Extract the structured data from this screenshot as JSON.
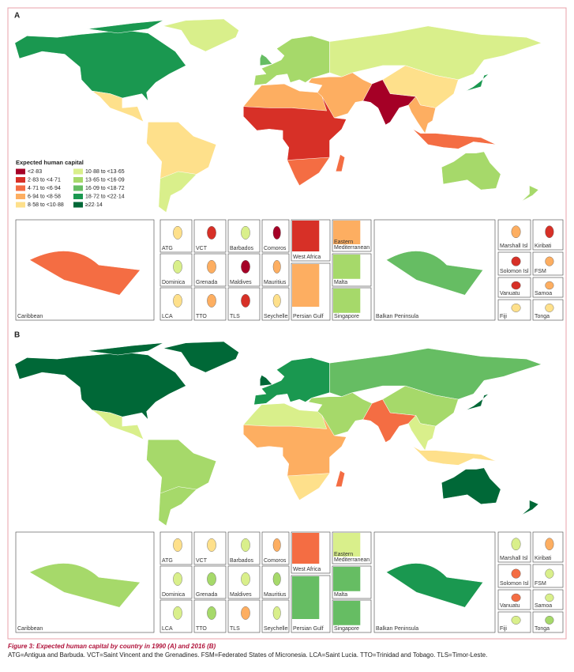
{
  "panels": [
    {
      "label": "A",
      "insets": [
        "Caribbean",
        "ATG",
        "VCT",
        "Barbados",
        "Comoros",
        "West Africa",
        "Eastern Mediterranean",
        "Balkan Peninsula",
        "Marshall Isl",
        "Kiribati",
        "Dominica",
        "Grenada",
        "Maldives",
        "Mauritius",
        "Malta",
        "Solomon Isl",
        "FSM",
        "LCA",
        "TTO",
        "TLS",
        "Seychelles",
        "Persian Gulf",
        "Singapore",
        "Vanuatu",
        "Samoa",
        "Fiji",
        "Tonga"
      ]
    },
    {
      "label": "B",
      "insets": [
        "Caribbean",
        "ATG",
        "VCT",
        "Barbados",
        "Comoros",
        "West Africa",
        "Eastern Mediterranean",
        "Balkan Peninsula",
        "Marshall Isl",
        "Kiribati",
        "Dominica",
        "Grenada",
        "Maldives",
        "Mauritius",
        "Malta",
        "Solomon Isl",
        "FSM",
        "LCA",
        "TTO",
        "TLS",
        "Seychelles",
        "Persian Gulf",
        "Singapore",
        "Vanuatu",
        "Samoa",
        "Fiji",
        "Tonga"
      ]
    }
  ],
  "legend": {
    "title": "Expected human capital",
    "items": [
      {
        "label": "<2·83",
        "color": "#a50026"
      },
      {
        "label": "2·83 to <4·71",
        "color": "#d73027"
      },
      {
        "label": "4·71 to <6·94",
        "color": "#f46d43"
      },
      {
        "label": "6·94 to <8·58",
        "color": "#fdae61"
      },
      {
        "label": "8·58 to <10·88",
        "color": "#fee08b"
      },
      {
        "label": "10·88 to <13·65",
        "color": "#d9ef8b"
      },
      {
        "label": "13·65 to <16·09",
        "color": "#a6d96a"
      },
      {
        "label": "16·09 to <18·72",
        "color": "#66bd63"
      },
      {
        "label": "18·72 to <22·14",
        "color": "#1a9850"
      },
      {
        "label": "≥22·14",
        "color": "#006837"
      }
    ]
  },
  "caption": {
    "title": "Figure 3: Expected human capital by country in 1990 (A) and 2016 (B)",
    "text": "ATG=Antigua and Barbuda. VCT=Saint Vincent and the Grenadines. FSM=Federated States of Micronesia. LCA=Saint Lucia. TTO=Trinidad and Tobago. TLS=Timor-Leste."
  }
}
